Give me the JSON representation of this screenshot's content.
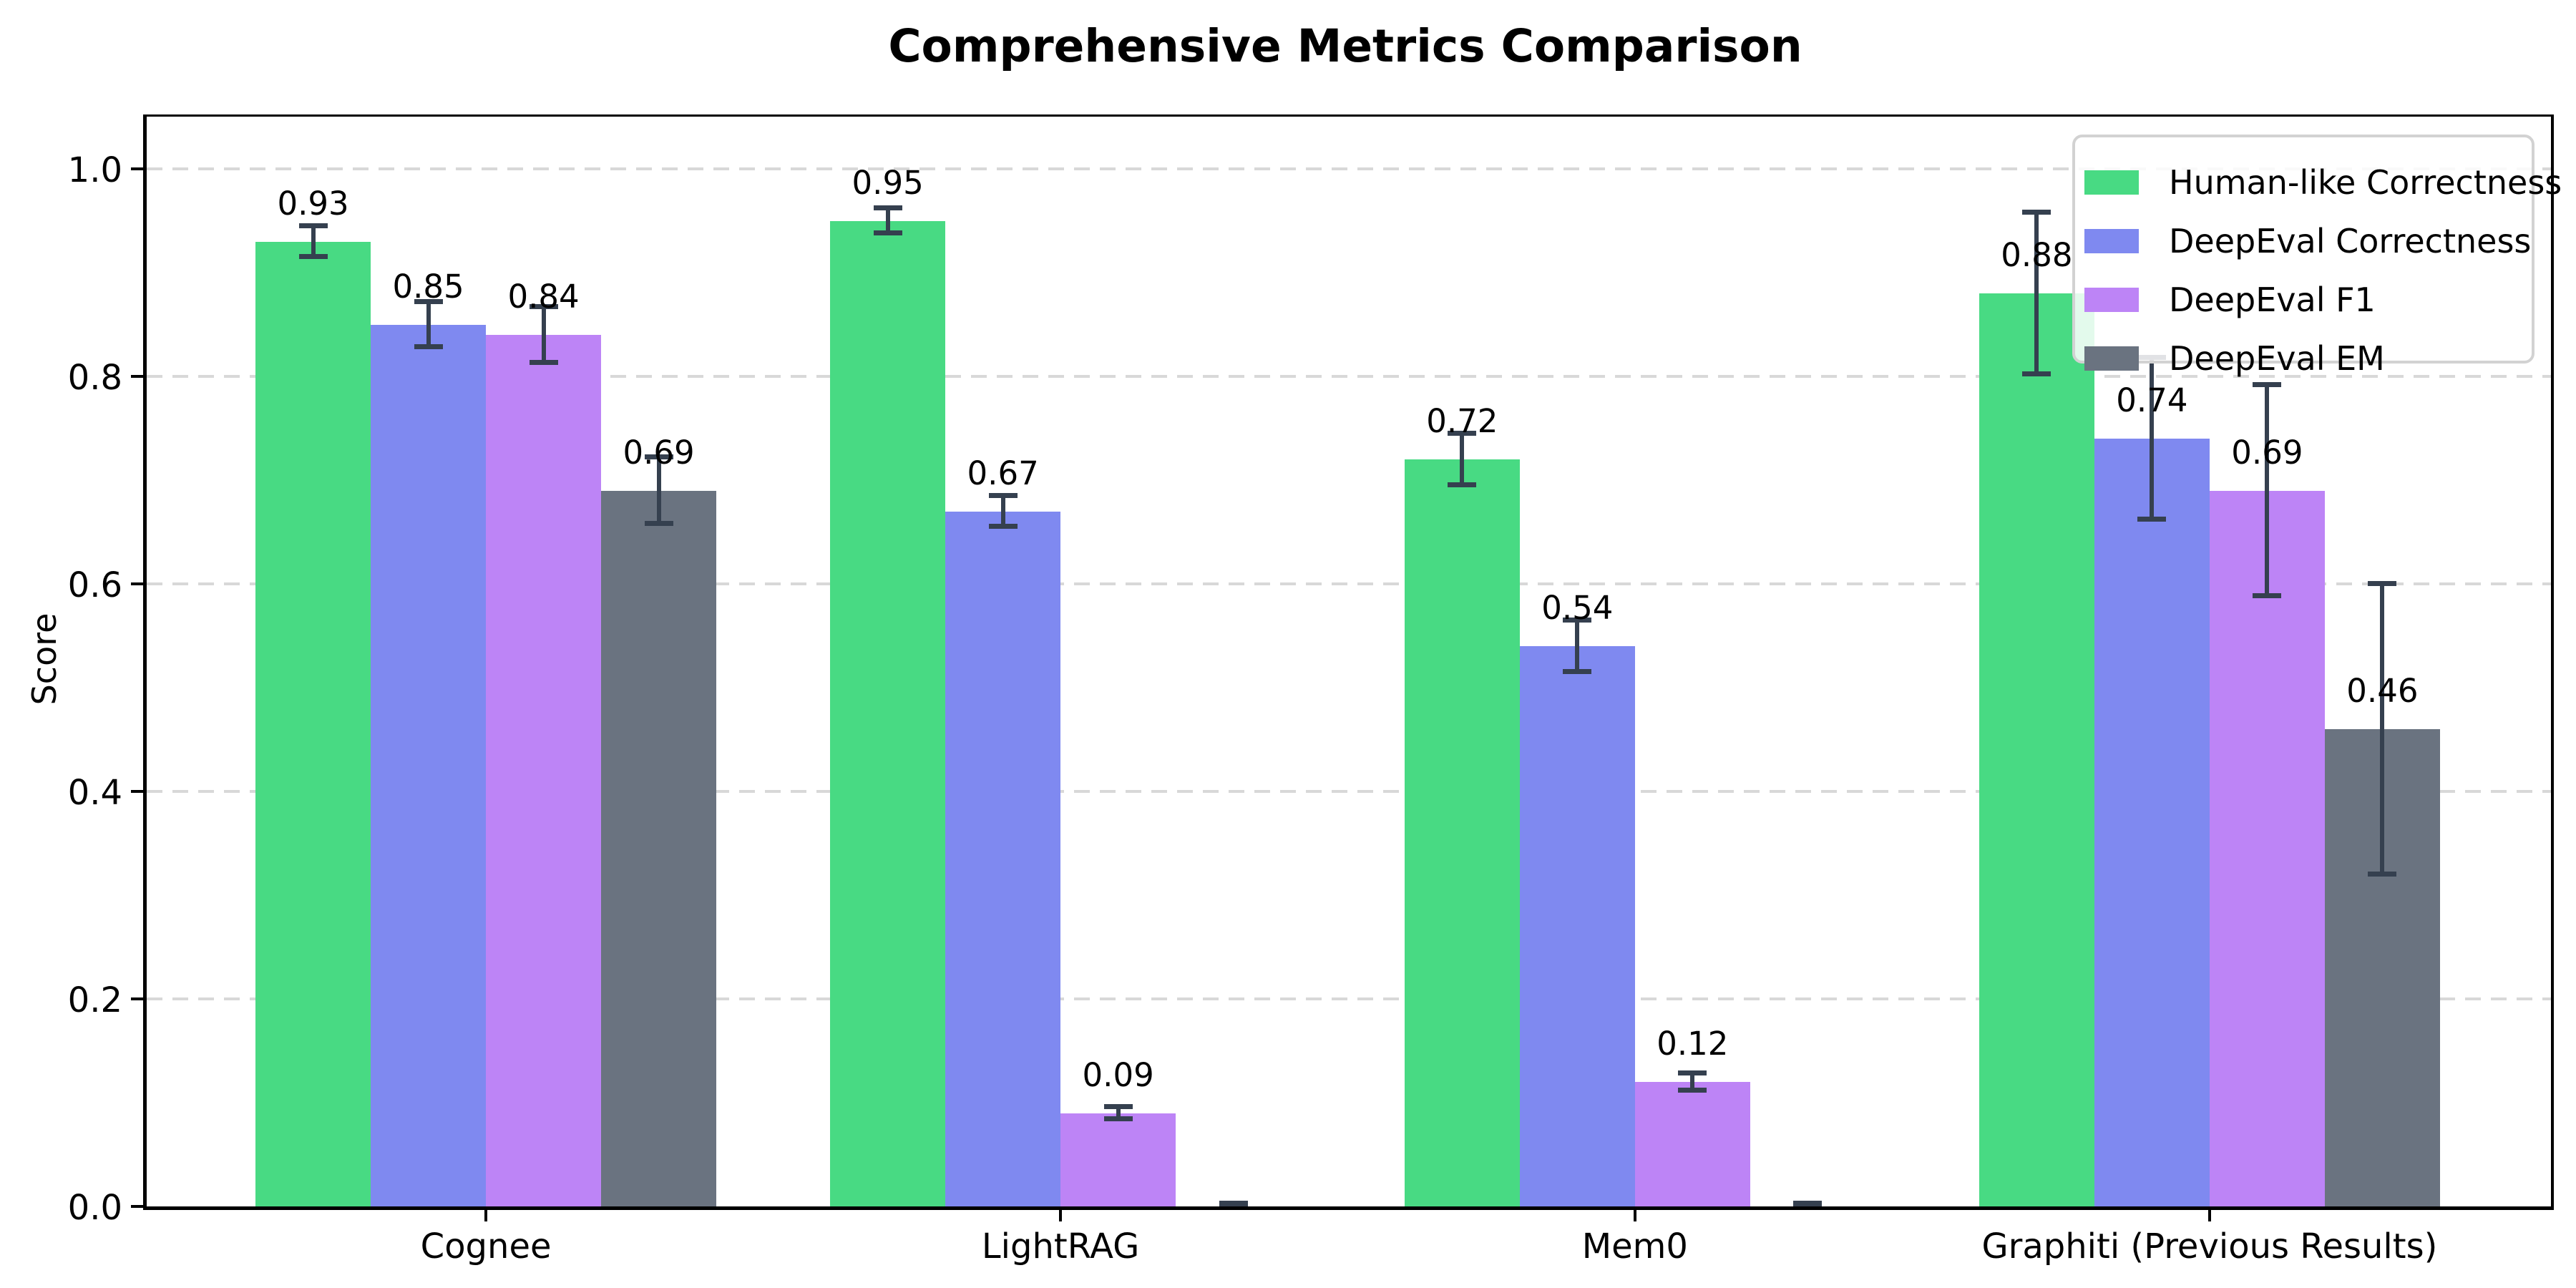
{
  "page": {
    "background": "#ffffff"
  },
  "chart_data": {
    "type": "bar",
    "title": "Comprehensive Metrics Comparison",
    "ylabel": "Score",
    "xlabel": "",
    "ylim": [
      0,
      1.05
    ],
    "yticks": [
      0.0,
      0.2,
      0.4,
      0.6,
      0.8,
      1.0
    ],
    "grid": "horizontal dashed lightgray",
    "legend_position": "upper right",
    "error_bar_color": "#35404f",
    "axis_color": "#000000",
    "categories": [
      "Cognee",
      "LightRAG",
      "Mem0",
      "Graphiti (Previous Results)"
    ],
    "series": [
      {
        "name": "Human-like Correctness",
        "color": "#48da83",
        "values": [
          0.93,
          0.95,
          0.72,
          0.88
        ],
        "errors": [
          0.015,
          0.012,
          0.025,
          0.078
        ],
        "labels": [
          "0.93",
          "0.95",
          "0.72",
          "0.88"
        ]
      },
      {
        "name": "DeepEval Correctness",
        "color": "#7f89f0",
        "values": [
          0.85,
          0.67,
          0.54,
          0.74
        ],
        "errors": [
          0.022,
          0.015,
          0.025,
          0.078
        ],
        "labels": [
          "0.85",
          "0.67",
          "0.54",
          "0.74"
        ]
      },
      {
        "name": "DeepEval F1",
        "color": "#bd84f6",
        "values": [
          0.84,
          0.09,
          0.12,
          0.69
        ],
        "errors": [
          0.027,
          0.006,
          0.008,
          0.102
        ],
        "labels": [
          "0.84",
          "0.09",
          "0.12",
          "0.69"
        ]
      },
      {
        "name": "DeepEval EM",
        "color": "#6a7380",
        "values": [
          0.69,
          0.0,
          0.0,
          0.46
        ],
        "errors": [
          0.032,
          0.003,
          0.003,
          0.14
        ],
        "labels": [
          "0.69",
          "",
          "",
          "0.46"
        ]
      }
    ]
  }
}
